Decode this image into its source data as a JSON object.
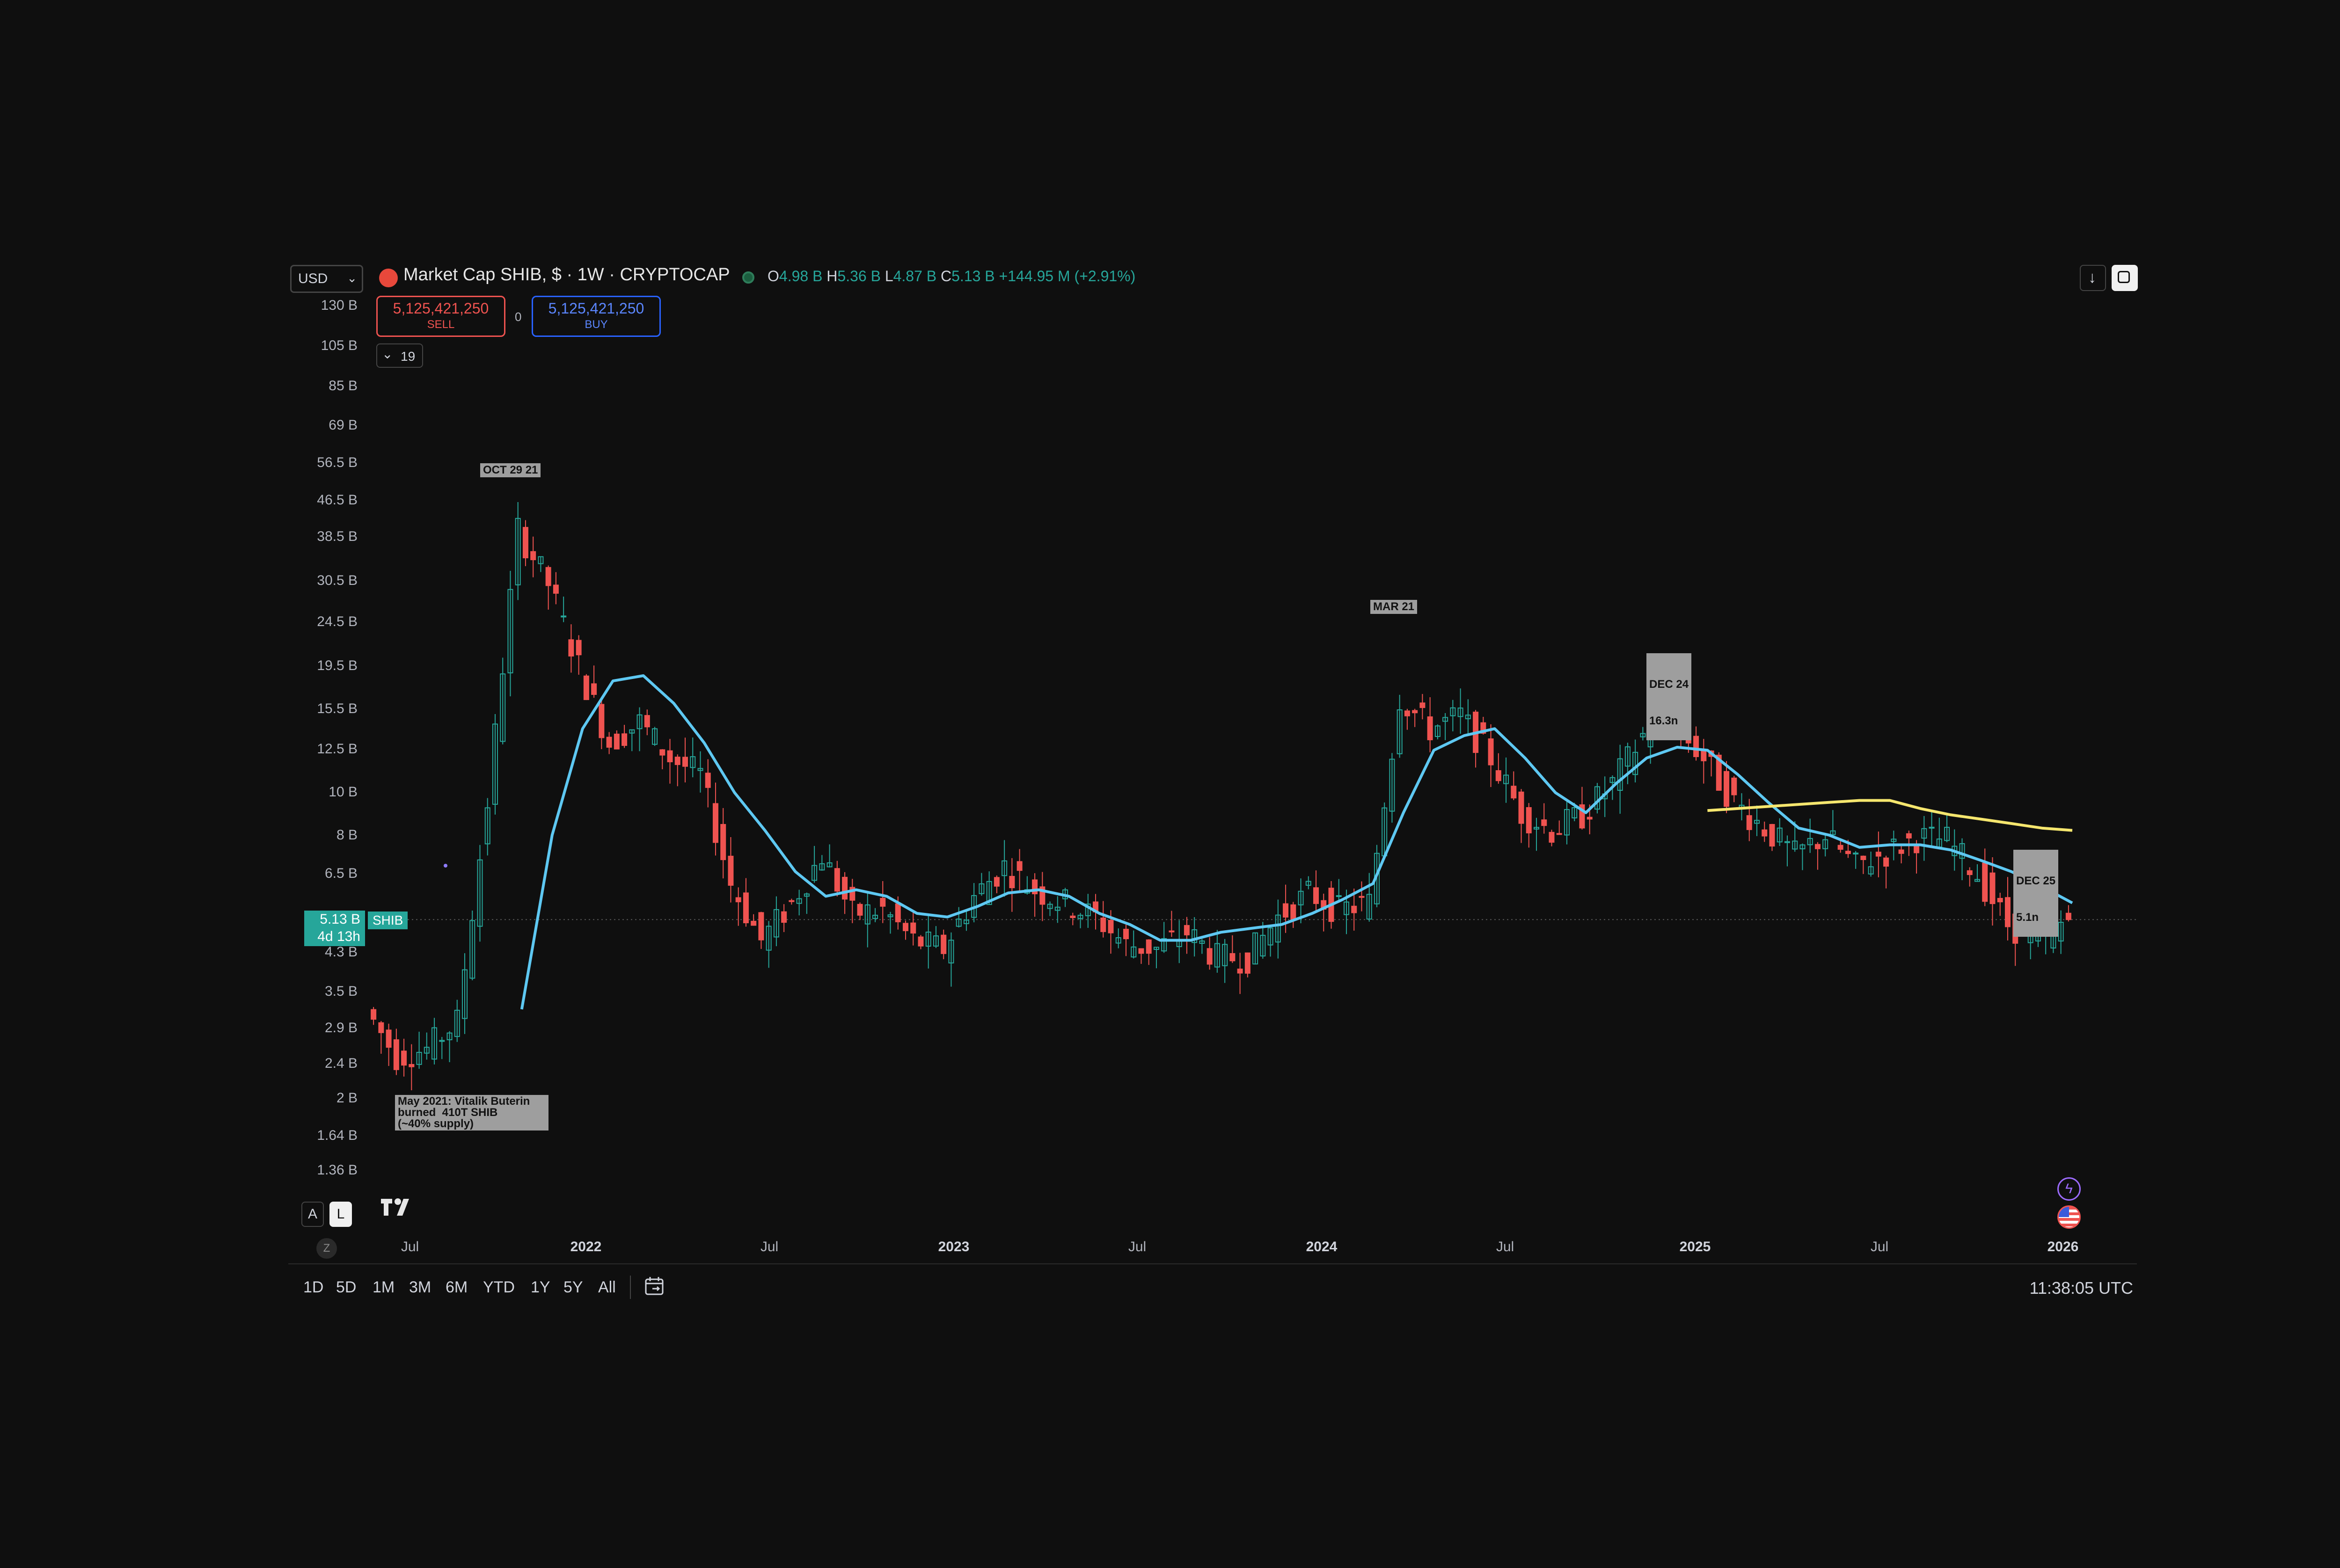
{
  "header": {
    "currency": "USD",
    "symbol_title": "Market Cap SHIB, $ · 1W · CRYPTOCAP",
    "ohlc": {
      "open_label": "O",
      "open": "4.98 B",
      "high_label": "H",
      "high": "5.36 B",
      "low_label": "L",
      "low": "4.87 B",
      "close_label": "C",
      "close": "5.13 B",
      "change": "+144.95 M (+2.91%)"
    },
    "sell_price": "5,125,421,250",
    "sell_label": "SELL",
    "spread": "0",
    "buy_price": "5,125,421,250",
    "buy_label": "BUY",
    "indicators_count": "19"
  },
  "price_axis": {
    "labels": [
      "130 B",
      "105 B",
      "85 B",
      "69 B",
      "56.5 B",
      "46.5 B",
      "38.5 B",
      "30.5 B",
      "24.5 B",
      "19.5 B",
      "15.5 B",
      "12.5 B",
      "10 B",
      "8 B",
      "6.5 B",
      "4.3 B",
      "3.5 B",
      "2.9 B",
      "2.4 B",
      "2 B",
      "1.64 B",
      "1.36 B"
    ],
    "current_price": "5.13 B",
    "countdown": "4d 13h",
    "series_tag": "SHIB",
    "scale_auto": "A",
    "scale_log": "L"
  },
  "time_axis": {
    "labels": [
      {
        "text": "Jul",
        "major": false
      },
      {
        "text": "2022",
        "major": true
      },
      {
        "text": "Jul",
        "major": false
      },
      {
        "text": "2023",
        "major": true
      },
      {
        "text": "Jul",
        "major": false
      },
      {
        "text": "2024",
        "major": true
      },
      {
        "text": "Jul",
        "major": false
      },
      {
        "text": "2025",
        "major": true
      },
      {
        "text": "Jul",
        "major": false
      },
      {
        "text": "2026",
        "major": true
      }
    ],
    "zoom_button": "Z"
  },
  "annotations": {
    "oct": "OCT 29 21",
    "mar": "MAR 21",
    "dec24_line1": "DEC 24",
    "dec24_line2": "16.3n",
    "dec25_line1": "DEC 25",
    "dec25_line2": "5.1n",
    "note": "May 2021: Vitalik Buterin\nburned  410T SHIB\n(~40% supply)"
  },
  "bottom_bar": {
    "ranges": [
      "1D",
      "5D",
      "1M",
      "3M",
      "6M",
      "YTD",
      "1Y",
      "5Y",
      "All"
    ],
    "time": "11:38:05 UTC"
  },
  "colors": {
    "background": "#0f0f0f",
    "up": "#26a69a",
    "down": "#ef5350",
    "ma_blue": "#5ec8f2",
    "ma_yellow": "#f5e66e",
    "sell": "#ef5350",
    "buy": "#2962ff"
  },
  "icons": [
    "download-icon",
    "fullscreen-icon",
    "tradingview-logo",
    "calendar-icon",
    "lightning-icon",
    "us-flag-icon",
    "chevron-down-icon",
    "coin-logo-icon"
  ],
  "chart_data": {
    "type": "candlestick",
    "scale": "log",
    "y_unit": "USD market cap (billions)",
    "ylim": [
      1.36,
      130
    ],
    "x_range": [
      "2021-05",
      "2026-01"
    ],
    "x": [
      "2021-05",
      "2021-06",
      "2021-07",
      "2021-08",
      "2021-09",
      "2021-10",
      "2021-11",
      "2021-12",
      "2022-01",
      "2022-02",
      "2022-03",
      "2022-04",
      "2022-05",
      "2022-06",
      "2022-07",
      "2022-08",
      "2022-09",
      "2022-10",
      "2022-11",
      "2022-12",
      "2023-01",
      "2023-02",
      "2023-03",
      "2023-04",
      "2023-05",
      "2023-06",
      "2023-07",
      "2023-08",
      "2023-09",
      "2023-10",
      "2023-11",
      "2023-12",
      "2024-01",
      "2024-02",
      "2024-03",
      "2024-04",
      "2024-05",
      "2024-06",
      "2024-07",
      "2024-08",
      "2024-09",
      "2024-10",
      "2024-11",
      "2024-12",
      "2025-01",
      "2025-02",
      "2025-03",
      "2025-04",
      "2025-05",
      "2025-06",
      "2025-07",
      "2025-08",
      "2025-09",
      "2025-10",
      "2025-11",
      "2025-12",
      "2026-01"
    ],
    "close": [
      3.2,
      2.5,
      2.6,
      3.0,
      9.5,
      40,
      30,
      19.5,
      13,
      14.5,
      12,
      11,
      6.2,
      4.6,
      5.6,
      7.2,
      5.3,
      5.4,
      4.6,
      4.4,
      5.8,
      6.8,
      6.0,
      5.6,
      5.2,
      4.5,
      4.4,
      4.8,
      4.2,
      4.2,
      5.2,
      5.9,
      5.4,
      5.6,
      16.5,
      14,
      15,
      12,
      9,
      8.2,
      8.9,
      10.5,
      13.5,
      14.5,
      12,
      9.5,
      8.3,
      7.2,
      8.0,
      6.8,
      7.3,
      7.9,
      7.8,
      6.5,
      5.0,
      4.6,
      5.13
    ],
    "ma_blue": [
      null,
      null,
      null,
      null,
      null,
      3.2,
      8,
      14,
      18,
      18.5,
      16,
      13,
      10,
      8.2,
      6.6,
      5.8,
      6.0,
      5.8,
      5.3,
      5.2,
      5.5,
      5.9,
      6.0,
      5.8,
      5.3,
      5.0,
      4.6,
      4.6,
      4.8,
      4.9,
      5.0,
      5.3,
      5.7,
      6.2,
      9,
      12.5,
      13.5,
      14,
      12,
      10,
      9,
      10.5,
      12,
      12.7,
      12.5,
      11,
      9.5,
      8.3,
      8.0,
      7.5,
      7.6,
      7.6,
      7.4,
      7.0,
      6.6,
      6.1,
      5.6
    ],
    "ma_yellow": [
      null,
      null,
      null,
      null,
      null,
      null,
      null,
      null,
      null,
      null,
      null,
      null,
      null,
      null,
      null,
      null,
      null,
      null,
      null,
      null,
      null,
      null,
      null,
      null,
      null,
      null,
      null,
      null,
      null,
      null,
      null,
      null,
      null,
      null,
      null,
      null,
      null,
      null,
      null,
      null,
      null,
      null,
      null,
      null,
      9.1,
      9.2,
      9.3,
      9.4,
      9.5,
      9.6,
      9.6,
      9.2,
      8.9,
      8.7,
      8.5,
      8.3,
      8.2
    ]
  }
}
